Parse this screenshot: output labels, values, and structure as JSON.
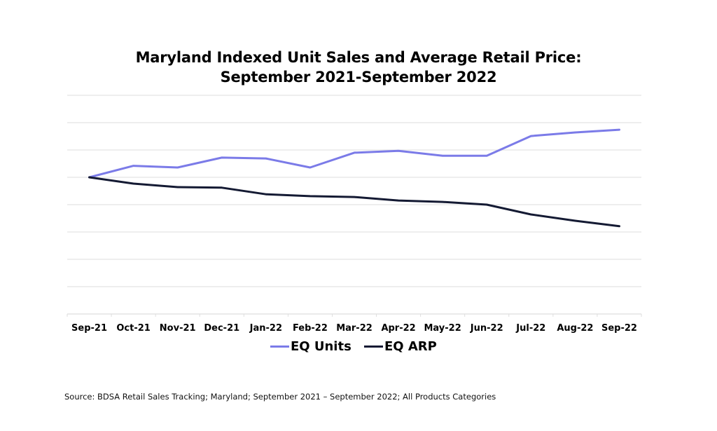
{
  "chart_data": {
    "type": "line",
    "title": "Maryland Indexed Unit Sales and Average Retail Price:",
    "subtitle": "September 2021-September 2022",
    "xlabel": "",
    "ylabel": "",
    "categories": [
      "Sep-21",
      "Oct-21",
      "Nov-21",
      "Dec-21",
      "Jan-22",
      "Feb-22",
      "Mar-22",
      "Apr-22",
      "May-22",
      "Jun-22",
      "Jul-22",
      "Aug-22",
      "Sep-22"
    ],
    "series": [
      {
        "name": "EQ Units",
        "color": "#7b7be8",
        "values": [
          100.0,
          104.2,
          103.6,
          107.2,
          106.9,
          103.6,
          109.0,
          109.7,
          107.9,
          107.9,
          115.1,
          116.4,
          117.4
        ]
      },
      {
        "name": "EQ ARP",
        "color": "#141a33",
        "values": [
          100.0,
          97.7,
          96.4,
          96.2,
          93.8,
          93.1,
          92.8,
          91.5,
          91.0,
          90.0,
          86.4,
          84.1,
          82.1
        ]
      }
    ],
    "ylim": [
      50,
      130
    ],
    "ytick_step": 10,
    "ytick_labels_shown": false,
    "grid": true,
    "legend_position": "bottom-center",
    "source_note": "Source: BDSA Retail Sales Tracking; Maryland; September 2021 – September 2022; All Products Categories"
  }
}
